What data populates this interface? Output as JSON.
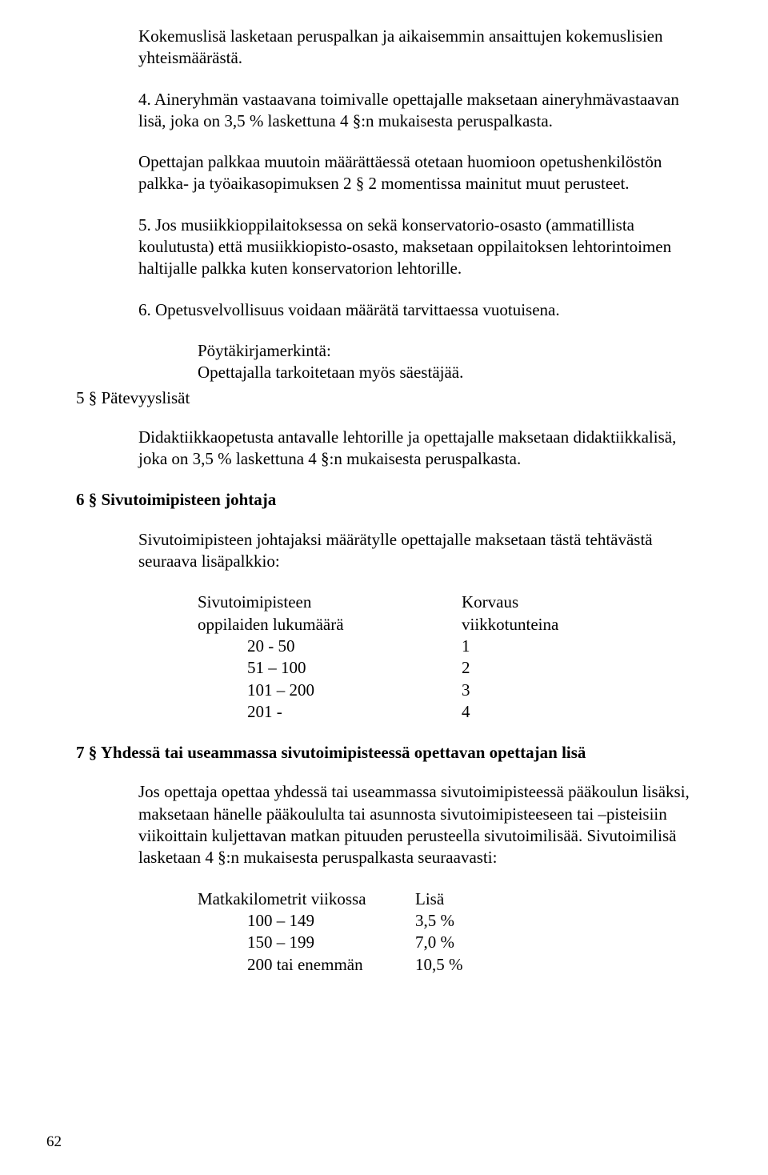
{
  "p1": "Kokemuslisä lasketaan peruspalkan ja aikaisemmin ansaittujen kokemuslisien yhteismäärästä.",
  "p2": "4. Aineryhmän vastaavana toimivalle opettajalle maksetaan aineryhmävastaavan lisä, joka on 3,5 % laskettuna 4 §:n mukaisesta peruspalkasta.",
  "p3": "Opettajan palkkaa muutoin määrättäessä otetaan huomioon opetushenkilöstön palkka- ja työaikasopimuksen 2 § 2 momentissa mainitut muut perusteet.",
  "p4": "5. Jos musiikkioppilaitoksessa on sekä konservatorio-osasto (ammatillista koulutusta) että musiikkiopisto-osasto, maksetaan oppilaitoksen lehtorintoimen haltijalle palkka kuten konservatorion lehtorille.",
  "p5": "6. Opetusvelvollisuus voidaan määrätä tarvittaessa vuotuisena.",
  "sub1": "Pöytäkirjamerkintä:",
  "sub2": "Opettajalla tarkoitetaan myös säestäjää.",
  "s5title": "5 § Pätevyyslisät",
  "p6": "Didaktiikkaopetusta antavalle lehtorille ja opettajalle maksetaan didaktiikkalisä, joka on 3,5 % laskettuna 4 §:n mukaisesta peruspalkasta.",
  "s6title": "6 § Sivutoimipisteen johtaja",
  "p7": "Sivutoimipisteen johtajaksi määrätylle opettajalle maksetaan tästä tehtävästä seuraava lisäpalkkio:",
  "t1": {
    "h1a": "Sivutoimipisteen",
    "h1b": "oppilaiden lukumäärä",
    "h2a": "Korvaus",
    "h2b": "viikkotunteina",
    "rows": [
      {
        "a": "20 - 50",
        "b": "1"
      },
      {
        "a": "51 – 100",
        "b": "2"
      },
      {
        "a": "101 – 200",
        "b": "3"
      },
      {
        "a": "201 -",
        "b": "4"
      }
    ]
  },
  "s7title": "7 § Yhdessä tai useammassa sivutoimipisteessä opettavan opettajan lisä",
  "p8": "Jos opettaja opettaa yhdessä tai useammassa sivutoimipisteessä pääkoulun lisäksi, maksetaan hänelle pääkoululta tai asunnosta sivutoimipisteeseen tai –pisteisiin viikoittain kuljettavan matkan pituuden perusteella sivutoimilisää. Sivutoimilisä lasketaan 4 §:n mukaisesta peruspalkasta seuraavasti:",
  "t2": {
    "h1": "Matkakilometrit viikossa",
    "h2": "Lisä",
    "rows": [
      {
        "a": "100 – 149",
        "b": "3,5 %"
      },
      {
        "a": "150 – 199",
        "b": "7,0 %"
      },
      {
        "a": "200 tai enemmän",
        "b": "10,5 %"
      }
    ]
  },
  "pagenum": "62"
}
